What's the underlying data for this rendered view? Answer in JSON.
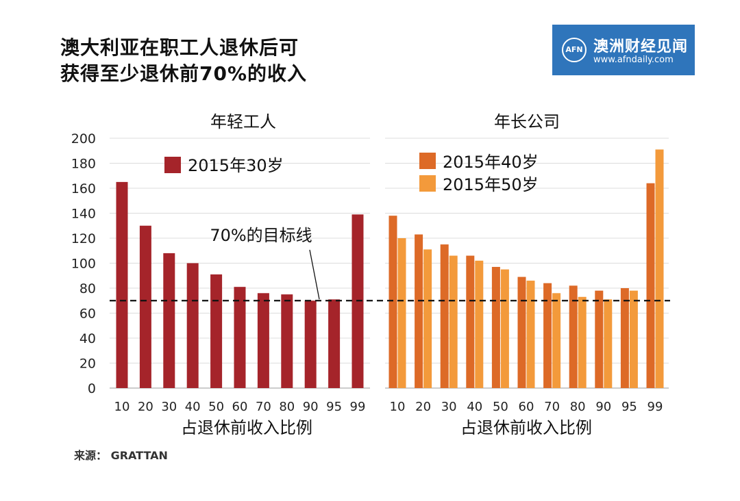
{
  "title": [
    "澳大利亚在职工人退休后可",
    "获得至少退休前70%的收入"
  ],
  "logo": {
    "mark": "AFN",
    "name": "澳洲财经见闻",
    "url": "www.afndaily.com"
  },
  "source": "来源： GRATTAN",
  "colors": {
    "dark_red": "#a5242a",
    "orange_dark": "#dd6a27",
    "orange_light": "#f39a3b",
    "grid": "#dcdcdc"
  },
  "chart_data": [
    {
      "type": "bar",
      "title": "年轻工人",
      "xlabel": "占退休前收入比例",
      "ylabel": "",
      "ylim": [
        0,
        200
      ],
      "yticks": [
        0,
        20,
        40,
        60,
        80,
        100,
        120,
        140,
        160,
        180,
        200
      ],
      "categories": [
        "10",
        "20",
        "30",
        "40",
        "50",
        "60",
        "70",
        "80",
        "90",
        "95",
        "99"
      ],
      "series": [
        {
          "name": "2015年30岁",
          "values": [
            165,
            130,
            108,
            100,
            91,
            81,
            76,
            75,
            70,
            71,
            139
          ]
        }
      ],
      "reference_line": {
        "value": 70,
        "label": "70%的目标线"
      },
      "legend": "top-left"
    },
    {
      "type": "bar",
      "title": "年长公司",
      "xlabel": "占退休前收入比例",
      "ylabel": "",
      "ylim": [
        0,
        200
      ],
      "categories": [
        "10",
        "20",
        "30",
        "40",
        "50",
        "60",
        "70",
        "80",
        "90",
        "95",
        "99"
      ],
      "series": [
        {
          "name": "2015年40岁",
          "values": [
            138,
            123,
            115,
            106,
            97,
            89,
            84,
            82,
            78,
            80,
            164
          ]
        },
        {
          "name": "2015年50岁",
          "values": [
            120,
            111,
            106,
            102,
            95,
            86,
            76,
            73,
            71,
            78,
            191
          ]
        }
      ],
      "reference_line": {
        "value": 70
      },
      "legend": "top-left"
    }
  ]
}
